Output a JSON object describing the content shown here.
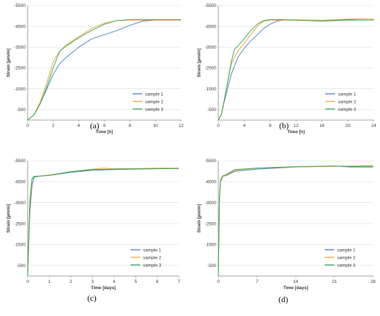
{
  "colors": {
    "sample 1": "#4a7fc0",
    "sample 2": "#f0a535",
    "sample 3": "#34a853"
  },
  "chart_data": [
    {
      "panel": "(a)",
      "type": "line",
      "xlabel": "Time [h]",
      "ylabel": "Strain [µm/m]",
      "xlim": [
        0,
        12
      ],
      "ylim": [
        0,
        -5500
      ],
      "xticks": [
        0,
        2,
        4,
        6,
        8,
        10,
        12
      ],
      "xtick_labels": [
        "0",
        "2",
        "4",
        "6",
        "8",
        "10",
        "12"
      ],
      "yticks": [
        -500,
        -1500,
        -2500,
        -3500,
        -4500,
        -5500
      ],
      "ytick_labels": [
        "-500",
        "-1500",
        "-2500",
        "-3500",
        "-4500",
        "-5500"
      ],
      "legend": "bottom-right",
      "series": [
        {
          "name": "sample 1",
          "x": [
            0,
            0.5,
            1,
            1.5,
            2,
            2.5,
            3,
            4,
            5,
            6,
            7,
            8,
            9,
            10,
            12
          ],
          "y": [
            0,
            -250,
            -800,
            -1500,
            -2200,
            -2700,
            -3000,
            -3500,
            -3900,
            -4100,
            -4300,
            -4550,
            -4750,
            -4800,
            -4800
          ]
        },
        {
          "name": "sample 2",
          "x": [
            0,
            0.5,
            1,
            1.5,
            2,
            2.5,
            3,
            4,
            5,
            6,
            7,
            8,
            9,
            10,
            12
          ],
          "y": [
            0,
            -250,
            -900,
            -1800,
            -2800,
            -3300,
            -3600,
            -4000,
            -4400,
            -4650,
            -4780,
            -4800,
            -4800,
            -4800,
            -4800
          ]
        },
        {
          "name": "sample 3",
          "x": [
            0,
            0.5,
            1,
            1.5,
            2,
            2.5,
            3,
            4,
            5,
            6,
            7,
            8,
            9,
            10,
            12
          ],
          "y": [
            0,
            -250,
            -800,
            -1600,
            -2500,
            -3300,
            -3550,
            -3950,
            -4300,
            -4600,
            -4780,
            -4820,
            -4820,
            -4820,
            -4820
          ]
        }
      ]
    },
    {
      "panel": "(b)",
      "type": "line",
      "xlabel": "Time [h]",
      "ylabel": "Strain [µm/m]",
      "xlim": [
        0,
        24
      ],
      "ylim": [
        0,
        -5500
      ],
      "xticks": [
        0,
        4,
        8,
        12,
        16,
        20,
        24
      ],
      "xtick_labels": [
        "0",
        "4",
        "8",
        "12",
        "16",
        "20",
        "24"
      ],
      "yticks": [
        -500,
        -1500,
        -2500,
        -3500,
        -4500,
        -5500
      ],
      "ytick_labels": [
        "-500",
        "-1500",
        "-2500",
        "-3500",
        "-4500",
        "-5500"
      ],
      "legend": "bottom-right",
      "series": [
        {
          "name": "sample 1",
          "x": [
            0,
            0.5,
            1,
            2,
            3,
            4,
            5,
            6,
            7,
            8,
            9,
            10,
            12,
            16,
            20,
            24
          ],
          "y": [
            0,
            -300,
            -1000,
            -2200,
            -3000,
            -3450,
            -3800,
            -4100,
            -4400,
            -4600,
            -4750,
            -4800,
            -4800,
            -4780,
            -4820,
            -4800
          ]
        },
        {
          "name": "sample 2",
          "x": [
            0,
            0.5,
            1,
            2,
            3,
            4,
            5,
            6,
            7,
            8,
            10,
            12,
            16,
            20,
            22,
            24
          ],
          "y": [
            0,
            -300,
            -1100,
            -2700,
            -3300,
            -3700,
            -4100,
            -4500,
            -4750,
            -4800,
            -4800,
            -4820,
            -4790,
            -4850,
            -4870,
            -4850
          ]
        },
        {
          "name": "sample 3",
          "x": [
            0,
            0.5,
            1,
            2,
            2.5,
            3,
            4,
            5,
            6,
            7,
            8,
            10,
            12,
            16,
            20,
            24
          ],
          "y": [
            0,
            -300,
            -1100,
            -2800,
            -3400,
            -3550,
            -3900,
            -4300,
            -4600,
            -4780,
            -4820,
            -4820,
            -4800,
            -4750,
            -4800,
            -4800
          ]
        }
      ]
    },
    {
      "panel": "(c)",
      "type": "line",
      "xlabel": "Time [days]",
      "ylabel": "Strain [µm/m]",
      "xlim": [
        0,
        7
      ],
      "ylim": [
        0,
        -5500
      ],
      "xticks": [
        0,
        1,
        2,
        3,
        4,
        5,
        6,
        7
      ],
      "xtick_labels": [
        "0",
        "1",
        "2",
        "3",
        "4",
        "5",
        "6",
        "7"
      ],
      "yticks": [
        -500,
        -1500,
        -2500,
        -3500,
        -4500,
        -5500
      ],
      "ytick_labels": [
        "-500",
        "-1500",
        "-2500",
        "-3500",
        "-4500",
        "-5500"
      ],
      "legend": "bottom-right",
      "series": [
        {
          "name": "sample 1",
          "x": [
            0,
            0.05,
            0.1,
            0.2,
            0.3,
            0.5,
            1,
            2,
            3,
            4,
            5,
            6,
            7
          ],
          "y": [
            0,
            -1500,
            -3000,
            -4300,
            -4720,
            -4760,
            -4800,
            -4950,
            -5050,
            -5080,
            -5100,
            -5120,
            -5130
          ]
        },
        {
          "name": "sample 2",
          "x": [
            0,
            0.05,
            0.1,
            0.2,
            0.3,
            0.5,
            1,
            2,
            3,
            3.5,
            4,
            5,
            6,
            7
          ],
          "y": [
            0,
            -1800,
            -3300,
            -4600,
            -4750,
            -4760,
            -4820,
            -4980,
            -5100,
            -5150,
            -5120,
            -5130,
            -5150,
            -5150
          ]
        },
        {
          "name": "sample 3",
          "x": [
            0,
            0.05,
            0.1,
            0.2,
            0.3,
            0.5,
            1,
            2,
            3,
            4,
            5,
            6,
            7
          ],
          "y": [
            0,
            -2000,
            -3600,
            -4650,
            -4760,
            -4770,
            -4800,
            -4980,
            -5080,
            -5100,
            -5110,
            -5120,
            -5130
          ]
        }
      ]
    },
    {
      "panel": "(d)",
      "type": "line",
      "xlabel": "Time [days]",
      "ylabel": "Strain [µm/m]",
      "xlim": [
        0,
        28
      ],
      "ylim": [
        0,
        -5500
      ],
      "xticks": [
        0,
        7,
        14,
        21,
        28
      ],
      "xtick_labels": [
        "0",
        "7",
        "14",
        "21",
        "28"
      ],
      "yticks": [
        -500,
        -1500,
        -2500,
        -3500,
        -4500,
        -5500
      ],
      "ytick_labels": [
        "-500",
        "-1500",
        "-2500",
        "-3500",
        "-4500",
        "-5500"
      ],
      "legend": "bottom-right",
      "series": [
        {
          "name": "sample 1",
          "x": [
            0,
            0.2,
            0.4,
            0.8,
            1.5,
            3,
            7,
            14,
            21,
            24,
            28
          ],
          "y": [
            0,
            -3500,
            -4500,
            -4750,
            -4800,
            -5000,
            -5100,
            -5200,
            -5250,
            -5200,
            -5200
          ]
        },
        {
          "name": "sample 2",
          "x": [
            0,
            0.2,
            0.4,
            0.8,
            1.5,
            3,
            7,
            14,
            21,
            24,
            28
          ],
          "y": [
            0,
            -3600,
            -4550,
            -4750,
            -4820,
            -5050,
            -5150,
            -5200,
            -5230,
            -5250,
            -5280
          ]
        },
        {
          "name": "sample 3",
          "x": [
            0,
            0.2,
            0.4,
            0.8,
            1.5,
            3,
            7,
            14,
            21,
            24,
            28
          ],
          "y": [
            0,
            -3700,
            -4600,
            -4780,
            -4850,
            -5080,
            -5150,
            -5220,
            -5250,
            -5230,
            -5230
          ]
        }
      ]
    }
  ]
}
